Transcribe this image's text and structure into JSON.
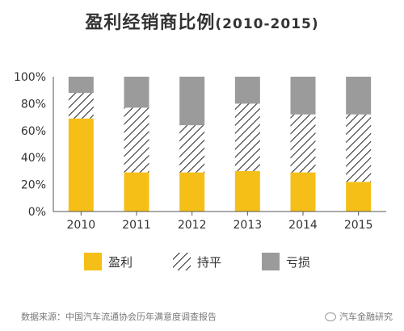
{
  "chart_data": {
    "type": "bar",
    "stacked": true,
    "title": "盈利经销商比例",
    "subtitle": "(2010-2015)",
    "categories": [
      "2010",
      "2011",
      "2012",
      "2013",
      "2014",
      "2015"
    ],
    "y_ticks": [
      "0%",
      "20%",
      "40%",
      "60%",
      "80%",
      "100%"
    ],
    "ylim": [
      0,
      100
    ],
    "unit": "%",
    "grid": false,
    "legend_position": "bottom",
    "series": [
      {
        "name": "盈利",
        "color": "#F5BF18",
        "pattern": "solid",
        "values": [
          69,
          29,
          29,
          30,
          29,
          22
        ]
      },
      {
        "name": "持平",
        "color": "#333333",
        "pattern": "hatch",
        "values": [
          19,
          48,
          35,
          50,
          43,
          50
        ]
      },
      {
        "name": "亏损",
        "color": "#9B9B9B",
        "pattern": "solid",
        "values": [
          12,
          23,
          36,
          20,
          28,
          28
        ]
      }
    ]
  },
  "footer": {
    "source": "数据来源：中国汽车流通协会历年满意度调查报告",
    "brand": "汽车金融研究"
  }
}
